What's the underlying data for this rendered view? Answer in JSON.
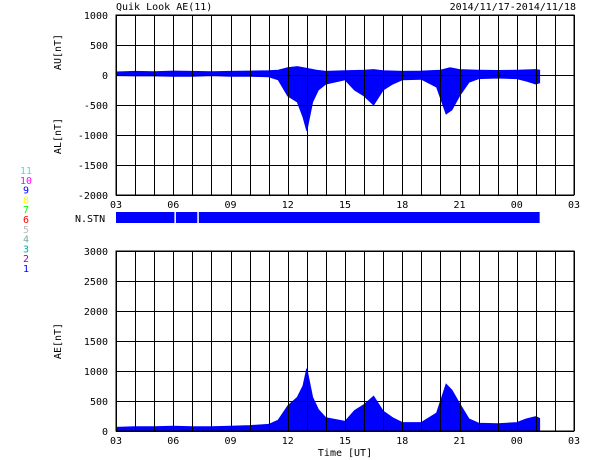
{
  "chart_data": {
    "type": "area",
    "title": "Quik Look AE(11)",
    "date_range": "2014/11/17-2014/11/18",
    "x_ticks": [
      "03",
      "06",
      "09",
      "12",
      "15",
      "18",
      "21",
      "00",
      "03"
    ],
    "x_label": "Time [UT]",
    "x_range_hours": [
      3,
      27
    ],
    "grid": true,
    "colors": {
      "fill": "#0000ff",
      "grid": "#000000"
    },
    "top_panel": {
      "ylabel_upper": "AU[nT]",
      "ylabel_lower": "AL[nT]",
      "ylim": [
        -2000,
        1000
      ],
      "y_ticks": [
        "1000",
        "500",
        "0",
        "-500",
        "-1000",
        "-1500",
        "-2000"
      ],
      "series": [
        {
          "values": [
            [
              3,
              50
            ],
            [
              4,
              60
            ],
            [
              5,
              55
            ],
            [
              6,
              65
            ],
            [
              7,
              60
            ],
            [
              8,
              55
            ],
            [
              9,
              60
            ],
            [
              10,
              65
            ],
            [
              11,
              70
            ],
            [
              11.5,
              80
            ],
            [
              12,
              120
            ],
            [
              12.5,
              140
            ],
            [
              13,
              110
            ],
            [
              13.5,
              80
            ],
            [
              14,
              60
            ],
            [
              15,
              70
            ],
            [
              16,
              80
            ],
            [
              16.5,
              90
            ],
            [
              17,
              70
            ],
            [
              18,
              60
            ],
            [
              19,
              65
            ],
            [
              20,
              80
            ],
            [
              20.5,
              120
            ],
            [
              21,
              90
            ],
            [
              22,
              80
            ],
            [
              23,
              75
            ],
            [
              24,
              80
            ],
            [
              25,
              90
            ],
            [
              25.2,
              80
            ]
          ]
        },
        {
          "values": [
            [
              3,
              -10
            ],
            [
              4,
              -15
            ],
            [
              5,
              -15
            ],
            [
              6,
              -20
            ],
            [
              7,
              -20
            ],
            [
              8,
              -10
            ],
            [
              9,
              -20
            ],
            [
              10,
              -20
            ],
            [
              11,
              -30
            ],
            [
              11.5,
              -80
            ],
            [
              12,
              -350
            ],
            [
              12.5,
              -450
            ],
            [
              12.8,
              -700
            ],
            [
              13,
              -930
            ],
            [
              13.3,
              -450
            ],
            [
              13.6,
              -250
            ],
            [
              14,
              -150
            ],
            [
              15,
              -80
            ],
            [
              15.5,
              -250
            ],
            [
              16,
              -350
            ],
            [
              16.5,
              -500
            ],
            [
              17,
              -250
            ],
            [
              17.5,
              -150
            ],
            [
              18,
              -80
            ],
            [
              19,
              -70
            ],
            [
              19.8,
              -200
            ],
            [
              20.3,
              -650
            ],
            [
              20.6,
              -580
            ],
            [
              21,
              -350
            ],
            [
              21.5,
              -120
            ],
            [
              22,
              -60
            ],
            [
              23,
              -50
            ],
            [
              24,
              -60
            ],
            [
              24.5,
              -100
            ],
            [
              25,
              -150
            ],
            [
              25.2,
              -130
            ]
          ]
        }
      ]
    },
    "station_panel": {
      "label": "N.STN",
      "legend_counts": [
        "11",
        "10",
        "9",
        "8",
        "7",
        "6",
        "5",
        "4",
        "3",
        "2",
        "1"
      ],
      "legend_colors": [
        "#00ffff",
        "#ff00ff",
        "#0000ff",
        "#ffff00",
        "#00ff00",
        "#ff0000",
        "#bbbbbb",
        "#77aaaa",
        "#00aaaa",
        "#aa00aa",
        "#0000ff"
      ],
      "station_count": 11,
      "coverage_hours": [
        3,
        25.2
      ],
      "gaps_hours": [
        6.1,
        7.3
      ]
    },
    "bottom_panel": {
      "ylabel": "AE[nT]",
      "ylim": [
        0,
        3000
      ],
      "y_ticks": [
        "3000",
        "2500",
        "2000",
        "1500",
        "1000",
        "500",
        "0"
      ],
      "series": [
        {
          "values": [
            [
              3,
              60
            ],
            [
              4,
              70
            ],
            [
              5,
              70
            ],
            [
              6,
              80
            ],
            [
              7,
              70
            ],
            [
              8,
              70
            ],
            [
              9,
              80
            ],
            [
              10,
              90
            ],
            [
              11,
              110
            ],
            [
              11.5,
              180
            ],
            [
              12,
              420
            ],
            [
              12.5,
              560
            ],
            [
              12.8,
              750
            ],
            [
              13,
              1040
            ],
            [
              13.3,
              560
            ],
            [
              13.6,
              360
            ],
            [
              14,
              220
            ],
            [
              15,
              160
            ],
            [
              15.5,
              340
            ],
            [
              16,
              440
            ],
            [
              16.5,
              580
            ],
            [
              17,
              330
            ],
            [
              17.5,
              220
            ],
            [
              18,
              140
            ],
            [
              19,
              140
            ],
            [
              19.8,
              300
            ],
            [
              20.3,
              780
            ],
            [
              20.6,
              680
            ],
            [
              21,
              460
            ],
            [
              21.5,
              200
            ],
            [
              22,
              130
            ],
            [
              23,
              120
            ],
            [
              24,
              140
            ],
            [
              24.5,
              200
            ],
            [
              25,
              240
            ],
            [
              25.2,
              210
            ]
          ]
        }
      ]
    }
  }
}
